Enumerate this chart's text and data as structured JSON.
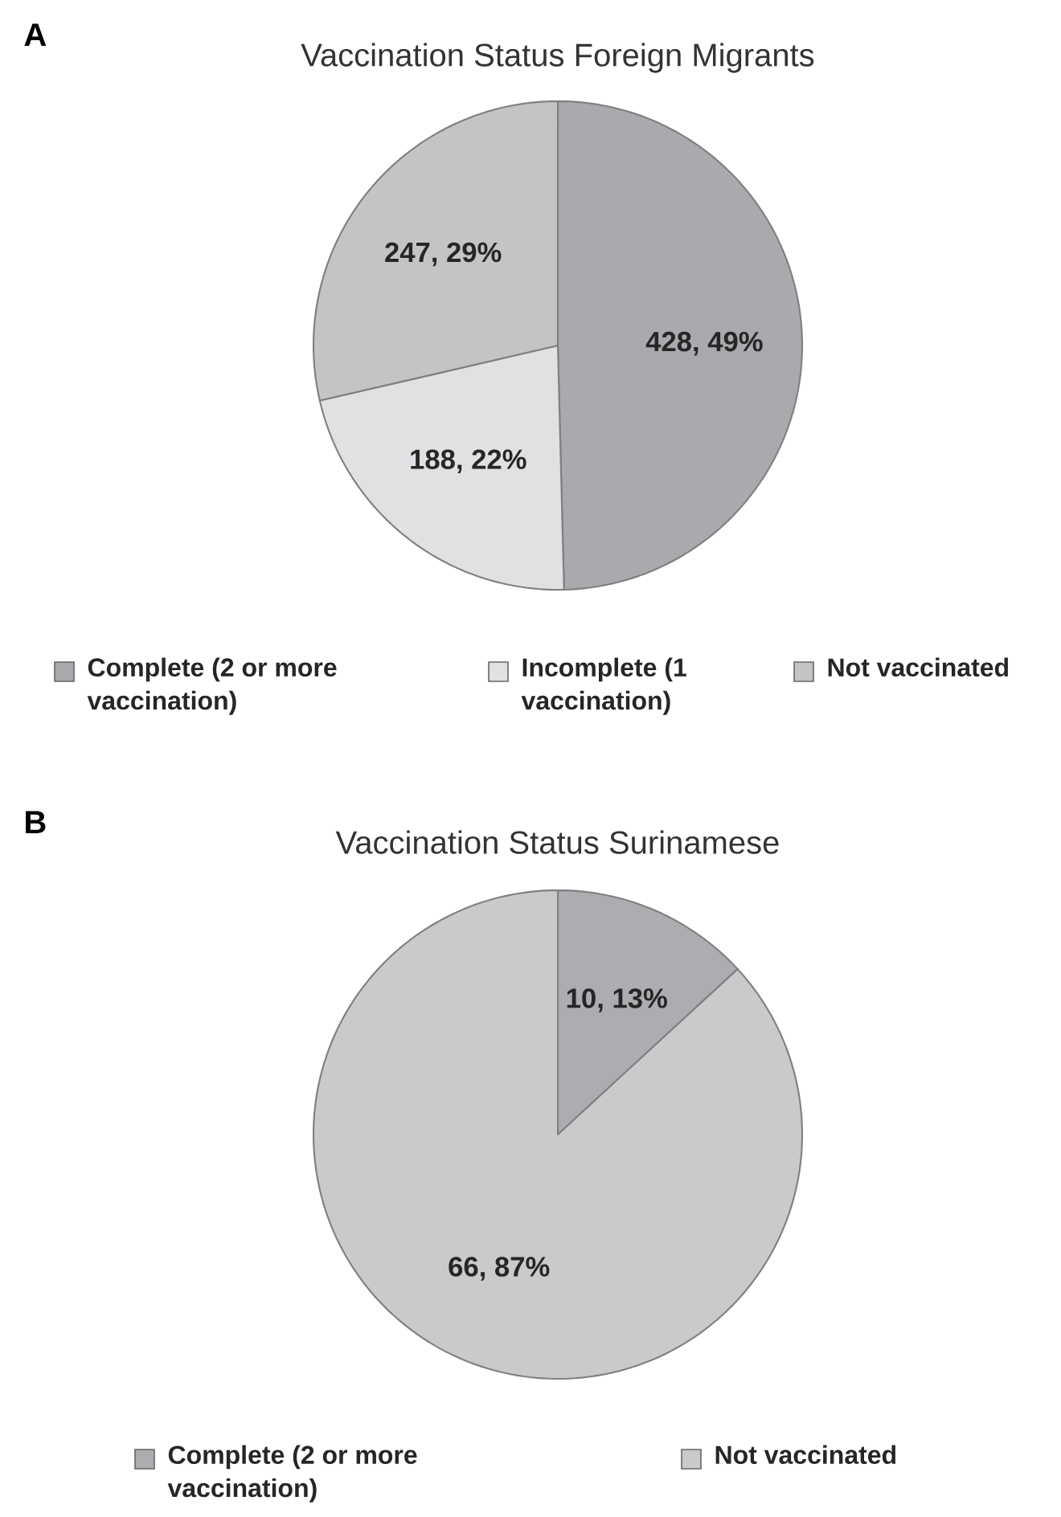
{
  "chart_data": [
    {
      "type": "pie",
      "title": "Vaccination Status Foreign Migrants",
      "annotations": [
        "A"
      ],
      "categories": [
        "Complete (2 or more vaccination)",
        "Incomplete (1 vaccination)",
        "Not vaccinated"
      ],
      "values": [
        428,
        188,
        247
      ],
      "value_labels": [
        "428, 49%",
        "188, 22%",
        "247, 29%"
      ],
      "colors": [
        "#a9aaad",
        "#e0e1e3",
        "#c3c4c6"
      ],
      "legend": "bottom"
    },
    {
      "type": "pie",
      "title": "Vaccination Status Surinamese",
      "annotations": [
        "B"
      ],
      "categories": [
        "Complete (2 or more vaccination)",
        "Not vaccinated"
      ],
      "values": [
        10,
        66
      ],
      "value_labels": [
        "10, 13%",
        "66, 87%"
      ],
      "colors": [
        "#acadb0",
        "#c9cacc"
      ],
      "legend": "bottom"
    }
  ]
}
